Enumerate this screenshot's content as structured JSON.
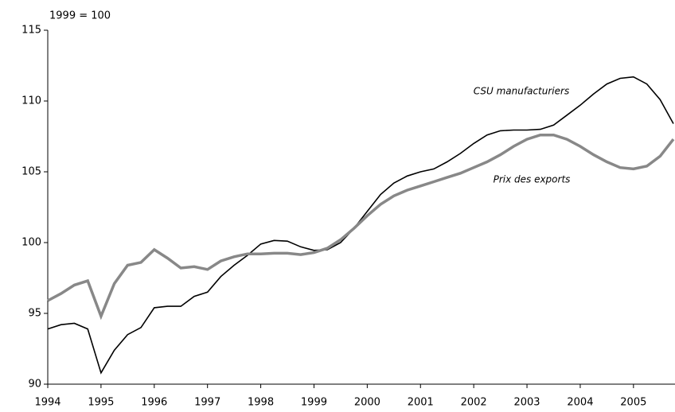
{
  "chart_data": {
    "type": "line",
    "subtitle": "1999 = 100",
    "x": [
      1994,
      1994.25,
      1994.5,
      1994.75,
      1995,
      1995.25,
      1995.5,
      1995.75,
      1996,
      1996.25,
      1996.5,
      1996.75,
      1997,
      1997.25,
      1997.5,
      1997.75,
      1998,
      1998.25,
      1998.5,
      1998.75,
      1999,
      1999.25,
      1999.5,
      1999.75,
      2000,
      2000.25,
      2000.5,
      2000.75,
      2001,
      2001.25,
      2001.5,
      2001.75,
      2002,
      2002.25,
      2002.5,
      2002.75,
      2003,
      2003.25,
      2003.5,
      2003.75,
      2004,
      2004.25,
      2004.5,
      2004.75,
      2005,
      2005.25,
      2005.5,
      2005.75
    ],
    "series": [
      {
        "name": "CSU manufacturiers",
        "color": "#000000",
        "values": [
          93.9,
          94.2,
          94.3,
          93.9,
          90.8,
          92.4,
          93.5,
          94.0,
          95.4,
          95.5,
          95.5,
          96.2,
          96.5,
          97.6,
          98.4,
          99.1,
          99.9,
          100.15,
          100.1,
          99.7,
          99.45,
          99.5,
          100.0,
          101.0,
          102.2,
          103.4,
          104.2,
          104.7,
          105.0,
          105.2,
          105.7,
          106.3,
          107.0,
          107.6,
          107.9,
          107.95,
          107.95,
          108.0,
          108.3,
          109.0,
          109.7,
          110.5,
          111.2,
          111.6,
          111.7,
          111.2,
          110.1,
          108.4
        ]
      },
      {
        "name": "Prix des exports",
        "color": "#888888",
        "values": [
          95.9,
          96.4,
          97.0,
          97.3,
          94.8,
          97.1,
          98.4,
          98.6,
          99.5,
          98.9,
          98.2,
          98.3,
          98.1,
          98.7,
          99.0,
          99.2,
          99.2,
          99.25,
          99.25,
          99.15,
          99.3,
          99.6,
          100.2,
          101.0,
          101.9,
          102.7,
          103.3,
          103.7,
          104.0,
          104.3,
          104.6,
          104.9,
          105.3,
          105.7,
          106.2,
          106.8,
          107.3,
          107.6,
          107.6,
          107.3,
          106.8,
          106.2,
          105.7,
          105.3,
          105.2,
          105.4,
          106.1,
          107.3
        ]
      }
    ],
    "xlim": [
      1994,
      2005.75
    ],
    "xticks": [
      1994,
      1995,
      1996,
      1997,
      1998,
      1999,
      2000,
      2001,
      2002,
      2003,
      2004,
      2005
    ],
    "ylim": [
      90,
      115
    ],
    "yticks": [
      90,
      95,
      100,
      105,
      110,
      115
    ],
    "grid": false
  }
}
